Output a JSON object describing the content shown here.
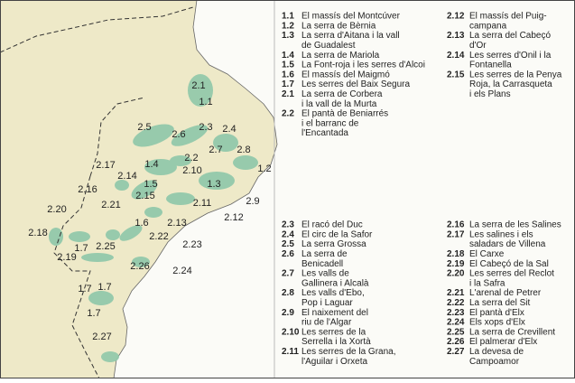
{
  "map_labels": [
    "2.1",
    "1.1",
    "2.5",
    "2.3",
    "2.4",
    "2.6",
    "2.7",
    "2.8",
    "2.2",
    "1.4",
    "2.10",
    "1.2",
    "2.17",
    "2.14",
    "1.3",
    "1.5",
    "2.16",
    "2.15",
    "2.9",
    "2.11",
    "2.21",
    "2.20",
    "2.12",
    "1.6",
    "2.13",
    "2.22",
    "2.18",
    "2.25",
    "2.23",
    "1.7",
    "2.19",
    "2.26",
    "2.24",
    "1.7",
    "1.7",
    "1.7",
    "2.27"
  ],
  "legend": [
    [
      {
        "code": "1.1",
        "lines": [
          "El massís del Montcúver"
        ]
      },
      {
        "code": "1.2",
        "lines": [
          "La serra de Bèrnia"
        ]
      },
      {
        "code": "1.3",
        "lines": [
          "La serra d'Aitana i la vall",
          "de Guadalest"
        ]
      },
      {
        "code": "1.4",
        "lines": [
          "La serra de Mariola"
        ]
      },
      {
        "code": "1.5",
        "lines": [
          "La Font-roja i les serres d'Alcoi"
        ]
      },
      {
        "code": "1.6",
        "lines": [
          "El massís del Maigmó"
        ]
      },
      {
        "code": "1.7",
        "lines": [
          "Les serres del Baix Segura"
        ]
      },
      {
        "code": "2.1",
        "lines": [
          "La serra de Corbera",
          "i la vall de la Murta"
        ]
      },
      {
        "code": "2.2",
        "lines": [
          "El pantà de Beniarrés",
          "i el barranc de",
          "l'Encantada"
        ]
      }
    ],
    [
      {
        "code": "2.12",
        "lines": [
          "El massís del Puig-",
          "campana"
        ]
      },
      {
        "code": "2.13",
        "lines": [
          "La serra del Cabeçó",
          "d'Or"
        ]
      },
      {
        "code": "2.14",
        "lines": [
          "Les serres d'Onil i la",
          "Fontanella"
        ]
      },
      {
        "code": "2.15",
        "lines": [
          "Les serres de la Penya",
          "Roja, la Carrasqueta",
          "i els Plans"
        ]
      }
    ],
    [
      {
        "code": "2.3",
        "lines": [
          "El racó del Duc"
        ]
      },
      {
        "code": "2.4",
        "lines": [
          "El circ de la Safor"
        ]
      },
      {
        "code": "2.5",
        "lines": [
          "La serra Grossa"
        ]
      },
      {
        "code": "2.6",
        "lines": [
          "La serra de",
          "Benicadell"
        ]
      },
      {
        "code": "2.7",
        "lines": [
          "Les valls de",
          "Gallinera i Alcalà"
        ]
      },
      {
        "code": "2.8",
        "lines": [
          "Les valls d'Ebo,",
          "Pop i Laguar"
        ]
      },
      {
        "code": "2.9",
        "lines": [
          "El naixement del",
          "riu de l'Algar"
        ]
      },
      {
        "code": "2.10",
        "lines": [
          "Les serres de la",
          "Serrella i la Xortà"
        ]
      },
      {
        "code": "2.11",
        "lines": [
          "Les serres de la Grana,",
          "l'Aguilar i Orxeta"
        ]
      }
    ],
    [
      {
        "code": "2.16",
        "lines": [
          "La serra de les Salines"
        ]
      },
      {
        "code": "2.17",
        "lines": [
          "Les salines i els",
          "saladars de Villena"
        ]
      },
      {
        "code": "2.18",
        "lines": [
          "El Carxe"
        ]
      },
      {
        "code": "2.19",
        "lines": [
          "El Cabeçó de la Sal"
        ]
      },
      {
        "code": "2.20",
        "lines": [
          "Les serres del Reclot",
          "i la Safra"
        ]
      },
      {
        "code": "2.21",
        "lines": [
          "L'arenal de Petrer"
        ]
      },
      {
        "code": "2.22",
        "lines": [
          "La serra del Sit"
        ]
      },
      {
        "code": "2.23",
        "lines": [
          "El pantà d'Elx"
        ]
      },
      {
        "code": "2.24",
        "lines": [
          "Els xops d'Elx"
        ]
      },
      {
        "code": "2.25",
        "lines": [
          "La serra de Crevillent"
        ]
      },
      {
        "code": "2.26",
        "lines": [
          "El palmerar d'Elx"
        ]
      },
      {
        "code": "2.27",
        "lines": [
          "La devesa de",
          "Campoamor"
        ]
      }
    ]
  ]
}
